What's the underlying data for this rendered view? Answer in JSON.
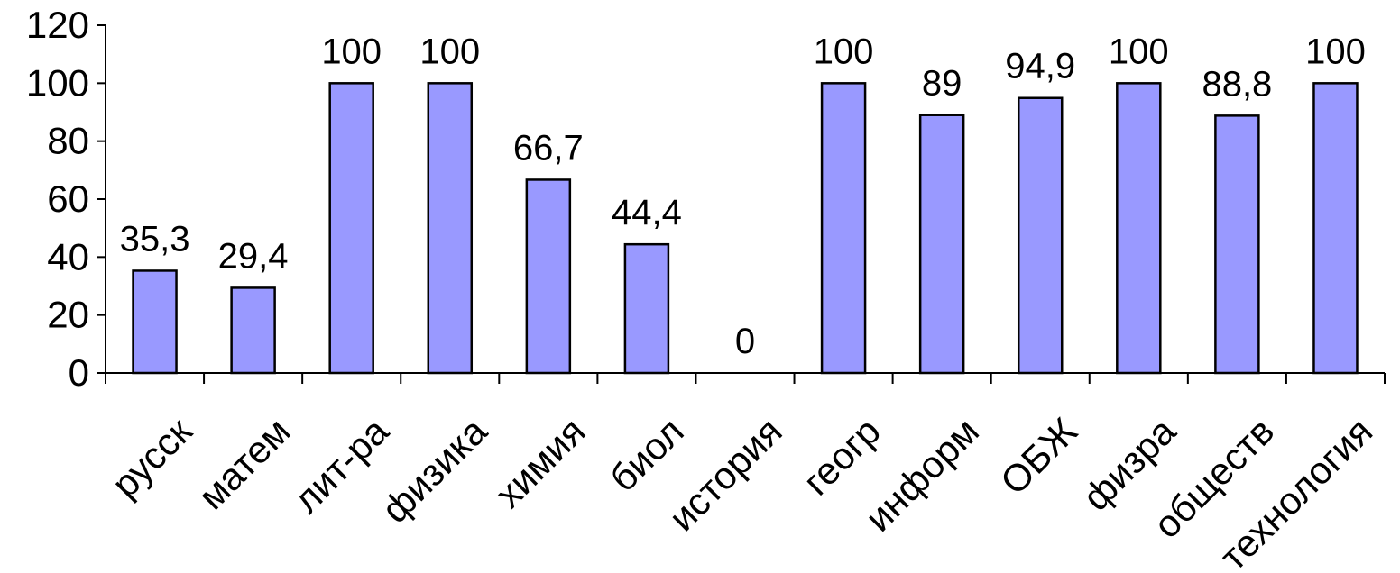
{
  "chart_data": {
    "type": "bar",
    "categories": [
      "русск",
      "матем",
      "лит-ра",
      "физика",
      "химия",
      "биол",
      "история",
      "геогр",
      "информ",
      "ОБЖ",
      "физра",
      "обществ",
      "технология"
    ],
    "values": [
      35.3,
      29.4,
      100,
      100,
      66.7,
      44.4,
      0,
      100,
      89,
      94.9,
      100,
      88.8,
      100
    ],
    "data_labels": [
      "35,3",
      "29,4",
      "100",
      "100",
      "66,7",
      "44,4",
      "0",
      "100",
      "89",
      "94,9",
      "100",
      "88,8",
      "100"
    ],
    "y_ticks": [
      "0",
      "20",
      "40",
      "60",
      "80",
      "100",
      "120"
    ],
    "ylim": [
      0,
      120
    ],
    "title": "",
    "xlabel": "",
    "ylabel": "",
    "grid": false,
    "legend": "none",
    "bar_color": "#9999ff",
    "bar_outline_color": "#000000"
  }
}
